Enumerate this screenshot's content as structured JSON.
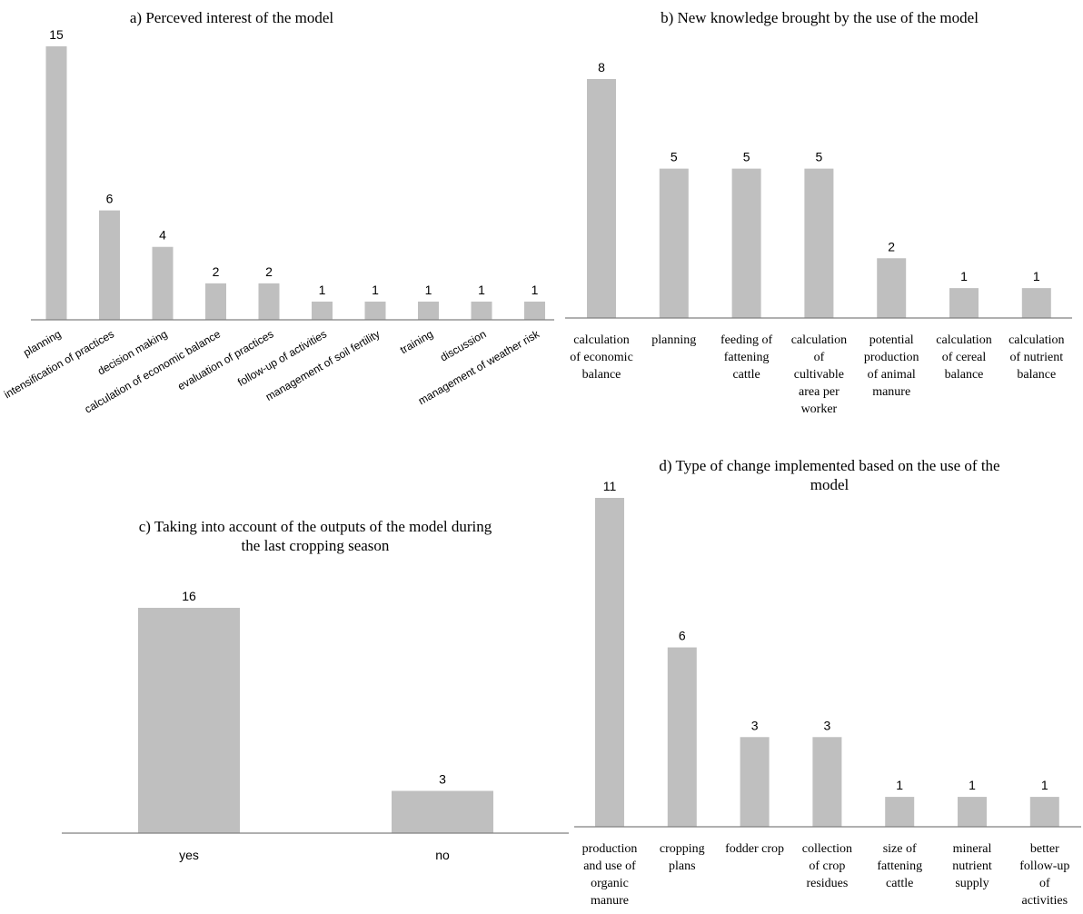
{
  "chart_data": [
    {
      "type": "bar",
      "title": "a) Perceved interest of the model",
      "categories": [
        "planning",
        "intensification of practices",
        "decision making",
        "calculation of economic balance",
        "evaluation of practices",
        "follow-up of activities",
        "management of soil fertility",
        "training",
        "discussion",
        "management of weather risk"
      ],
      "values": [
        15,
        6,
        4,
        2,
        2,
        1,
        1,
        1,
        1,
        1
      ],
      "xlabel": "",
      "ylabel": "",
      "ylim": [
        0,
        15
      ],
      "grid": false,
      "legend": "none"
    },
    {
      "type": "bar",
      "title": "b) New knowledge brought by the use of the model",
      "categories": [
        "calculation of economic balance",
        "planning",
        "feeding of fattening cattle",
        "calculation of cultivable area per worker",
        "potential production of animal manure",
        "calculation of cereal balance",
        "calculation of nutrient balance"
      ],
      "values": [
        8,
        5,
        5,
        5,
        2,
        1,
        1
      ],
      "xlabel": "",
      "ylabel": "",
      "ylim": [
        0,
        8
      ],
      "grid": false,
      "legend": "none"
    },
    {
      "type": "bar",
      "title": "c) Taking into account of the outputs of the model during the last cropping season",
      "categories": [
        "yes",
        "no"
      ],
      "values": [
        16,
        3
      ],
      "xlabel": "",
      "ylabel": "",
      "ylim": [
        0,
        16
      ],
      "grid": false,
      "legend": "none"
    },
    {
      "type": "bar",
      "title": "d) Type of change implemented based on the use of the model",
      "categories": [
        "production and use of organic manure",
        "cropping plans",
        "fodder crop",
        "collection of crop residues",
        "size of fattening cattle",
        "mineral nutrient supply",
        "better follow-up of activities"
      ],
      "values": [
        11,
        6,
        3,
        3,
        1,
        1,
        1
      ],
      "xlabel": "",
      "ylabel": "",
      "ylim": [
        0,
        11
      ],
      "grid": false,
      "legend": "none"
    }
  ]
}
